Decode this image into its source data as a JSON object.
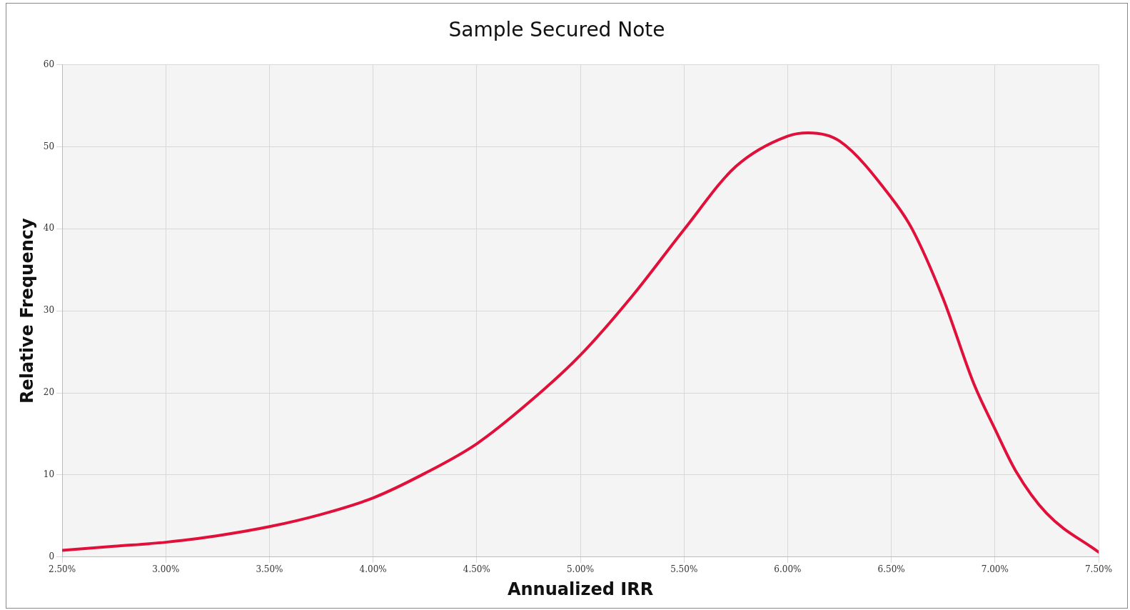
{
  "chart_data": {
    "type": "line",
    "title": "Sample Secured Note",
    "xlabel": "Annualized IRR",
    "ylabel": "Relative Frequency",
    "x": [
      2.5,
      2.75,
      3.0,
      3.25,
      3.5,
      3.75,
      4.0,
      4.25,
      4.5,
      4.75,
      5.0,
      5.25,
      5.5,
      5.75,
      6.0,
      6.1,
      6.25,
      6.5,
      6.6,
      6.75,
      6.9,
      7.0,
      7.1,
      7.25,
      7.5
    ],
    "series": [
      {
        "color": "#e0103a",
        "values": [
          0.8,
          1.3,
          1.8,
          2.6,
          3.7,
          5.2,
          7.2,
          10.2,
          13.8,
          18.8,
          24.6,
          31.8,
          39.9,
          47.6,
          51.3,
          51.7,
          50.7,
          43.8,
          40,
          31.5,
          21,
          15.6,
          10.5,
          5.3,
          0.6
        ]
      }
    ],
    "xlim": [
      2.5,
      7.5
    ],
    "xticks": [
      {
        "value": 2.5,
        "label": "2.50%"
      },
      {
        "value": 3,
        "label": "3.00%"
      },
      {
        "value": 3.5,
        "label": "3.50%"
      },
      {
        "value": 4,
        "label": "4.00%"
      },
      {
        "value": 4.5,
        "label": "4.50%"
      },
      {
        "value": 5,
        "label": "5.00%"
      },
      {
        "value": 5.5,
        "label": "5.50%"
      },
      {
        "value": 6,
        "label": "6.00%"
      },
      {
        "value": 6.5,
        "label": "6.50%"
      },
      {
        "value": 7,
        "label": "7.00%"
      },
      {
        "value": 7.5,
        "label": "7.50%"
      }
    ],
    "ylim": [
      0,
      60
    ],
    "yticks": [
      0,
      10,
      20,
      30,
      40,
      50,
      60
    ],
    "grid": true,
    "legend": false,
    "marker": "none",
    "line_style": "solid"
  }
}
